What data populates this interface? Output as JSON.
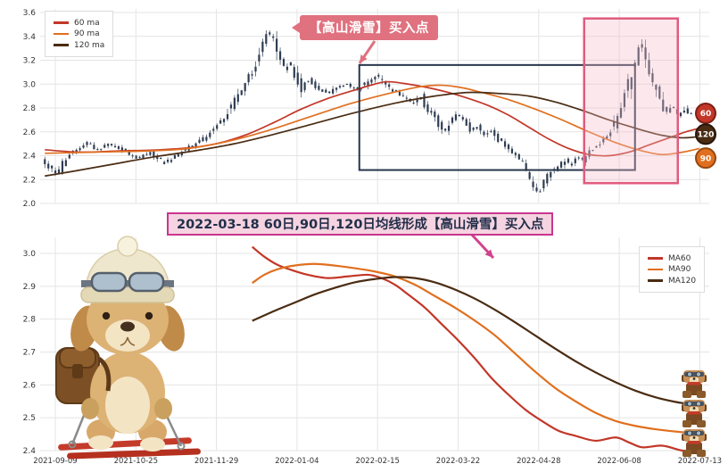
{
  "annotations": {
    "top_callout": "【高山滑雪】买入点",
    "mid_callout": "2022-03-18 60日,90日,120日均线形成【高山滑雪】买入点"
  },
  "colors": {
    "ma60": "#c23728",
    "ma90": "#e06f1f",
    "ma120": "#4a2c13",
    "candle": "#2f3d52",
    "grid": "#e4e4e4",
    "highlight_fill": "#f6bcc8",
    "highlight_border": "#e05c7e",
    "signal_box_border": "#25354a",
    "top_arrow": "#e0717f",
    "mid_arrow": "#d0438f"
  },
  "chart_data": [
    {
      "type": "candlestick",
      "panel": "top",
      "title": "",
      "ylim": [
        1.95,
        3.65
      ],
      "yticks": [
        2.0,
        2.2,
        2.4,
        2.6,
        2.8,
        3.0,
        3.2,
        3.4,
        3.6
      ],
      "grid": true,
      "legend_position": "upper-left",
      "candle_color": "#2f3d52",
      "noise_seed": 12,
      "price_path": [
        [
          0.007,
          2.38
        ],
        [
          0.02,
          2.3
        ],
        [
          0.03,
          2.24
        ],
        [
          0.045,
          2.4
        ],
        [
          0.06,
          2.46
        ],
        [
          0.075,
          2.52
        ],
        [
          0.09,
          2.45
        ],
        [
          0.11,
          2.5
        ],
        [
          0.13,
          2.44
        ],
        [
          0.15,
          2.38
        ],
        [
          0.17,
          2.43
        ],
        [
          0.19,
          2.34
        ],
        [
          0.21,
          2.41
        ],
        [
          0.23,
          2.48
        ],
        [
          0.25,
          2.55
        ],
        [
          0.265,
          2.63
        ],
        [
          0.28,
          2.72
        ],
        [
          0.295,
          2.86
        ],
        [
          0.31,
          3.0
        ],
        [
          0.325,
          3.14
        ],
        [
          0.335,
          3.3
        ],
        [
          0.345,
          3.46
        ],
        [
          0.353,
          3.36
        ],
        [
          0.362,
          3.22
        ],
        [
          0.37,
          3.1
        ],
        [
          0.378,
          3.2
        ],
        [
          0.387,
          3.06
        ],
        [
          0.395,
          2.96
        ],
        [
          0.405,
          3.04
        ],
        [
          0.42,
          2.96
        ],
        [
          0.435,
          2.92
        ],
        [
          0.45,
          2.98
        ],
        [
          0.465,
          3.0
        ],
        [
          0.478,
          2.95
        ],
        [
          0.49,
          3.0
        ],
        [
          0.5,
          3.05
        ],
        [
          0.508,
          3.09
        ],
        [
          0.517,
          3.01
        ],
        [
          0.527,
          2.97
        ],
        [
          0.54,
          2.92
        ],
        [
          0.553,
          2.87
        ],
        [
          0.565,
          2.84
        ],
        [
          0.572,
          2.91
        ],
        [
          0.582,
          2.8
        ],
        [
          0.592,
          2.74
        ],
        [
          0.602,
          2.65
        ],
        [
          0.61,
          2.6
        ],
        [
          0.618,
          2.7
        ],
        [
          0.628,
          2.74
        ],
        [
          0.638,
          2.69
        ],
        [
          0.648,
          2.61
        ],
        [
          0.657,
          2.66
        ],
        [
          0.667,
          2.56
        ],
        [
          0.677,
          2.62
        ],
        [
          0.688,
          2.54
        ],
        [
          0.7,
          2.49
        ],
        [
          0.712,
          2.43
        ],
        [
          0.724,
          2.36
        ],
        [
          0.734,
          2.26
        ],
        [
          0.743,
          2.13
        ],
        [
          0.752,
          2.09
        ],
        [
          0.76,
          2.21
        ],
        [
          0.77,
          2.27
        ],
        [
          0.78,
          2.32
        ],
        [
          0.79,
          2.37
        ],
        [
          0.797,
          2.3
        ],
        [
          0.806,
          2.41
        ],
        [
          0.813,
          2.35
        ],
        [
          0.822,
          2.41
        ],
        [
          0.832,
          2.46
        ],
        [
          0.842,
          2.51
        ],
        [
          0.852,
          2.56
        ],
        [
          0.862,
          2.66
        ],
        [
          0.872,
          2.82
        ],
        [
          0.882,
          2.97
        ],
        [
          0.89,
          3.12
        ],
        [
          0.898,
          3.26
        ],
        [
          0.905,
          3.33
        ],
        [
          0.913,
          3.17
        ],
        [
          0.922,
          3.0
        ],
        [
          0.93,
          2.88
        ],
        [
          0.94,
          2.74
        ],
        [
          0.95,
          2.83
        ],
        [
          0.96,
          2.72
        ],
        [
          0.968,
          2.79
        ],
        [
          0.973,
          2.76
        ]
      ],
      "series": [
        {
          "name": "60 ma",
          "color": "#c23728",
          "points": [
            [
              0.007,
              2.45
            ],
            [
              0.06,
              2.43
            ],
            [
              0.12,
              2.44
            ],
            [
              0.18,
              2.45
            ],
            [
              0.23,
              2.47
            ],
            [
              0.27,
              2.51
            ],
            [
              0.31,
              2.58
            ],
            [
              0.35,
              2.68
            ],
            [
              0.39,
              2.79
            ],
            [
              0.43,
              2.88
            ],
            [
              0.47,
              2.95
            ],
            [
              0.5,
              3.0
            ],
            [
              0.52,
              3.02
            ],
            [
              0.55,
              3.0
            ],
            [
              0.58,
              2.97
            ],
            [
              0.61,
              2.93
            ],
            [
              0.64,
              2.88
            ],
            [
              0.67,
              2.82
            ],
            [
              0.7,
              2.74
            ],
            [
              0.73,
              2.64
            ],
            [
              0.76,
              2.54
            ],
            [
              0.79,
              2.46
            ],
            [
              0.82,
              2.41
            ],
            [
              0.85,
              2.4
            ],
            [
              0.88,
              2.43
            ],
            [
              0.91,
              2.49
            ],
            [
              0.94,
              2.55
            ],
            [
              0.965,
              2.6
            ],
            [
              0.985,
              2.63
            ]
          ]
        },
        {
          "name": "90 ma",
          "color": "#e06f1f",
          "points": [
            [
              0.007,
              2.42
            ],
            [
              0.08,
              2.43
            ],
            [
              0.16,
              2.44
            ],
            [
              0.22,
              2.46
            ],
            [
              0.28,
              2.52
            ],
            [
              0.34,
              2.61
            ],
            [
              0.4,
              2.72
            ],
            [
              0.46,
              2.83
            ],
            [
              0.52,
              2.92
            ],
            [
              0.57,
              2.98
            ],
            [
              0.6,
              2.99
            ],
            [
              0.63,
              2.97
            ],
            [
              0.66,
              2.93
            ],
            [
              0.7,
              2.87
            ],
            [
              0.74,
              2.79
            ],
            [
              0.78,
              2.7
            ],
            [
              0.82,
              2.6
            ],
            [
              0.86,
              2.51
            ],
            [
              0.9,
              2.44
            ],
            [
              0.93,
              2.41
            ],
            [
              0.96,
              2.43
            ],
            [
              0.985,
              2.46
            ]
          ]
        },
        {
          "name": "120 ma",
          "color": "#4a2c13",
          "points": [
            [
              0.007,
              2.23
            ],
            [
              0.05,
              2.27
            ],
            [
              0.11,
              2.33
            ],
            [
              0.17,
              2.39
            ],
            [
              0.23,
              2.44
            ],
            [
              0.29,
              2.5
            ],
            [
              0.35,
              2.58
            ],
            [
              0.41,
              2.67
            ],
            [
              0.47,
              2.76
            ],
            [
              0.53,
              2.84
            ],
            [
              0.59,
              2.9
            ],
            [
              0.64,
              2.93
            ],
            [
              0.69,
              2.92
            ],
            [
              0.73,
              2.9
            ],
            [
              0.77,
              2.85
            ],
            [
              0.81,
              2.78
            ],
            [
              0.85,
              2.7
            ],
            [
              0.89,
              2.63
            ],
            [
              0.93,
              2.57
            ],
            [
              0.96,
              2.55
            ],
            [
              0.985,
              2.56
            ]
          ]
        }
      ],
      "badges": [
        {
          "label": "60",
          "color": "#c23728",
          "ring": "#7e1f15",
          "price": 2.755
        },
        {
          "label": "120",
          "color": "#4a2c13",
          "ring": "#27160a",
          "price": 2.58
        },
        {
          "label": "90",
          "color": "#e06f1f",
          "ring": "#96470f",
          "price": 2.38
        }
      ],
      "highlight_box": {
        "x_from_frac": 0.813,
        "x_to_frac": 0.953,
        "price_from": 2.17,
        "price_to": 3.55
      },
      "signal_box": {
        "x_from_frac": 0.477,
        "x_to_frac": 0.889,
        "price_from": 2.28,
        "price_to": 3.16
      }
    },
    {
      "type": "line",
      "panel": "bottom",
      "title": "",
      "ylim": [
        2.33,
        3.06
      ],
      "yticks": [
        2.4,
        2.5,
        2.6,
        2.7,
        2.8,
        2.9,
        3.0
      ],
      "grid": true,
      "legend_position": "upper-right",
      "xtick_dates": [
        "2021-09-09",
        "2021-10-25",
        "2021-11-29",
        "2022-01-04",
        "2022-02-15",
        "2022-03-22",
        "2022-04-28",
        "2022-06-08",
        "2022-07-13"
      ],
      "series": [
        {
          "name": "MA60",
          "color": "#c23728",
          "points": [
            [
              0.317,
              3.02
            ],
            [
              0.335,
              2.99
            ],
            [
              0.355,
              2.965
            ],
            [
              0.375,
              2.95
            ],
            [
              0.4,
              2.935
            ],
            [
              0.43,
              2.925
            ],
            [
              0.46,
              2.93
            ],
            [
              0.49,
              2.935
            ],
            [
              0.51,
              2.925
            ],
            [
              0.53,
              2.905
            ],
            [
              0.55,
              2.875
            ],
            [
              0.575,
              2.835
            ],
            [
              0.6,
              2.785
            ],
            [
              0.625,
              2.735
            ],
            [
              0.65,
              2.68
            ],
            [
              0.675,
              2.62
            ],
            [
              0.7,
              2.57
            ],
            [
              0.725,
              2.525
            ],
            [
              0.75,
              2.49
            ],
            [
              0.775,
              2.46
            ],
            [
              0.8,
              2.445
            ],
            [
              0.83,
              2.43
            ],
            [
              0.86,
              2.44
            ],
            [
              0.88,
              2.425
            ],
            [
              0.9,
              2.41
            ],
            [
              0.93,
              2.415
            ],
            [
              0.96,
              2.4
            ],
            [
              0.99,
              2.395
            ]
          ]
        },
        {
          "name": "MA90",
          "color": "#e06f1f",
          "points": [
            [
              0.317,
              2.91
            ],
            [
              0.335,
              2.935
            ],
            [
              0.355,
              2.952
            ],
            [
              0.38,
              2.963
            ],
            [
              0.41,
              2.968
            ],
            [
              0.44,
              2.963
            ],
            [
              0.47,
              2.955
            ],
            [
              0.5,
              2.945
            ],
            [
              0.53,
              2.93
            ],
            [
              0.56,
              2.905
            ],
            [
              0.59,
              2.87
            ],
            [
              0.62,
              2.835
            ],
            [
              0.65,
              2.795
            ],
            [
              0.68,
              2.75
            ],
            [
              0.71,
              2.695
            ],
            [
              0.74,
              2.64
            ],
            [
              0.77,
              2.59
            ],
            [
              0.8,
              2.55
            ],
            [
              0.83,
              2.515
            ],
            [
              0.86,
              2.49
            ],
            [
              0.89,
              2.475
            ],
            [
              0.92,
              2.465
            ],
            [
              0.95,
              2.458
            ],
            [
              0.99,
              2.45
            ]
          ]
        },
        {
          "name": "MA120",
          "color": "#4a2c13",
          "points": [
            [
              0.317,
              2.795
            ],
            [
              0.35,
              2.825
            ],
            [
              0.38,
              2.85
            ],
            [
              0.41,
              2.875
            ],
            [
              0.44,
              2.895
            ],
            [
              0.47,
              2.912
            ],
            [
              0.5,
              2.922
            ],
            [
              0.53,
              2.928
            ],
            [
              0.56,
              2.925
            ],
            [
              0.59,
              2.912
            ],
            [
              0.62,
              2.89
            ],
            [
              0.65,
              2.862
            ],
            [
              0.68,
              2.828
            ],
            [
              0.71,
              2.79
            ],
            [
              0.74,
              2.75
            ],
            [
              0.77,
              2.71
            ],
            [
              0.8,
              2.672
            ],
            [
              0.83,
              2.638
            ],
            [
              0.86,
              2.608
            ],
            [
              0.89,
              2.582
            ],
            [
              0.92,
              2.562
            ],
            [
              0.95,
              2.548
            ],
            [
              0.99,
              2.535
            ]
          ]
        }
      ]
    }
  ]
}
